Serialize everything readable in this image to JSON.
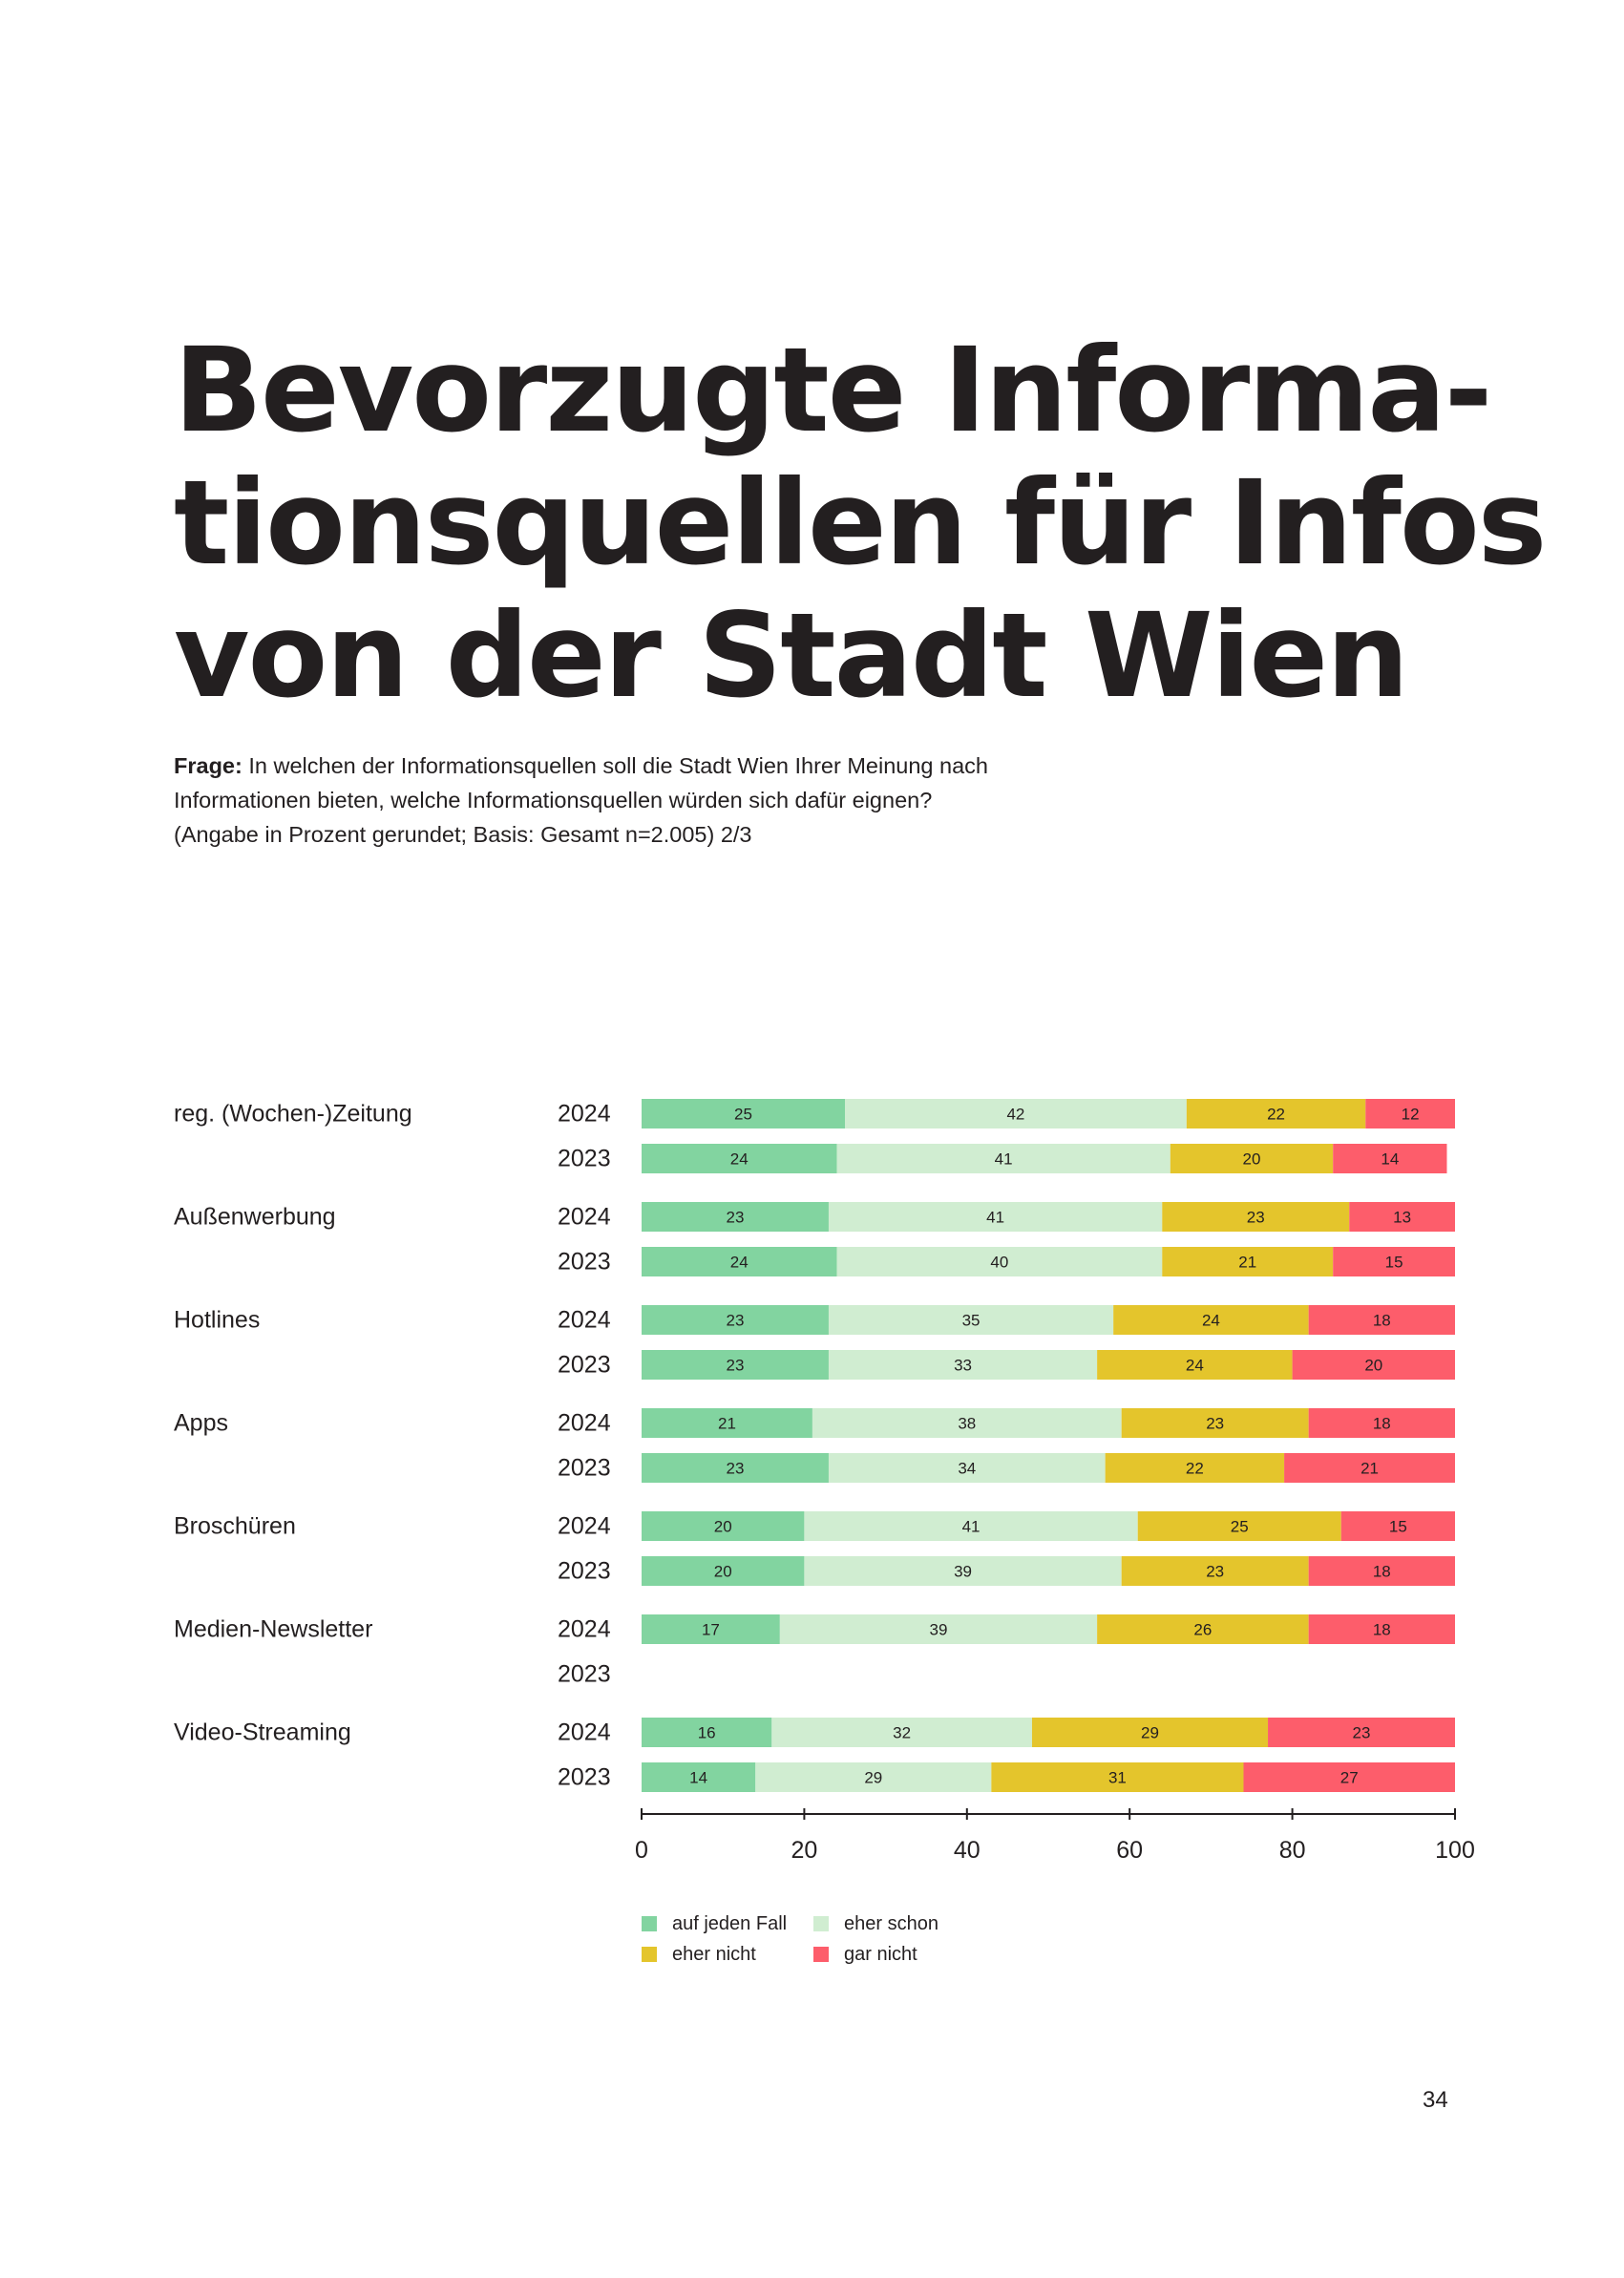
{
  "page": {
    "title_lines": [
      "Bevorzugte Informa-",
      "tionsquellen für Infos",
      "von der Stadt Wien"
    ],
    "question_label": "Frage:",
    "question_line1": "In welchen der Informationsquellen soll die Stadt Wien Ihrer Meinung nach",
    "question_line2": "Informationen bieten, welche Informationsquellen würden sich dafür eignen?",
    "question_line3": "(Angabe in Prozent gerundet; Basis: Gesamt n=2.005) 2/3",
    "page_number": "34"
  },
  "chart_data": {
    "type": "bar",
    "orientation": "horizontal",
    "stacked": true,
    "title": "",
    "xlabel": "",
    "ylabel": "",
    "xlim": [
      0,
      100
    ],
    "xticks": [
      0,
      20,
      40,
      60,
      80,
      100
    ],
    "legend_position": "bottom-left",
    "series": [
      {
        "name": "auf jeden Fall",
        "color": "#82d4a0"
      },
      {
        "name": "eher schon",
        "color": "#d0edd1"
      },
      {
        "name": "eher nicht",
        "color": "#e4c52c"
      },
      {
        "name": "gar nicht",
        "color": "#fd5d6b"
      }
    ],
    "groups": [
      {
        "label": "reg. (Wochen-)Zeitung",
        "rows": [
          {
            "year": "2024",
            "values": [
              25,
              42,
              22,
              12
            ]
          },
          {
            "year": "2023",
            "values": [
              24,
              41,
              20,
              14
            ]
          }
        ]
      },
      {
        "label": "Außenwerbung",
        "rows": [
          {
            "year": "2024",
            "values": [
              23,
              41,
              23,
              13
            ]
          },
          {
            "year": "2023",
            "values": [
              24,
              40,
              21,
              15
            ]
          }
        ]
      },
      {
        "label": "Hotlines",
        "rows": [
          {
            "year": "2024",
            "values": [
              23,
              35,
              24,
              18
            ]
          },
          {
            "year": "2023",
            "values": [
              23,
              33,
              24,
              20
            ]
          }
        ]
      },
      {
        "label": "Apps",
        "rows": [
          {
            "year": "2024",
            "values": [
              21,
              38,
              23,
              18
            ]
          },
          {
            "year": "2023",
            "values": [
              23,
              34,
              22,
              21
            ]
          }
        ]
      },
      {
        "label": "Broschüren",
        "rows": [
          {
            "year": "2024",
            "values": [
              20,
              41,
              25,
              15
            ]
          },
          {
            "year": "2023",
            "values": [
              20,
              39,
              23,
              18
            ]
          }
        ]
      },
      {
        "label": "Medien-Newsletter",
        "rows": [
          {
            "year": "2024",
            "values": [
              17,
              39,
              26,
              18
            ]
          },
          {
            "year": "2023",
            "values": null
          }
        ]
      },
      {
        "label": "Video-Streaming",
        "rows": [
          {
            "year": "2024",
            "values": [
              16,
              32,
              29,
              23
            ]
          },
          {
            "year": "2023",
            "values": [
              14,
              29,
              31,
              27
            ]
          }
        ]
      }
    ]
  }
}
